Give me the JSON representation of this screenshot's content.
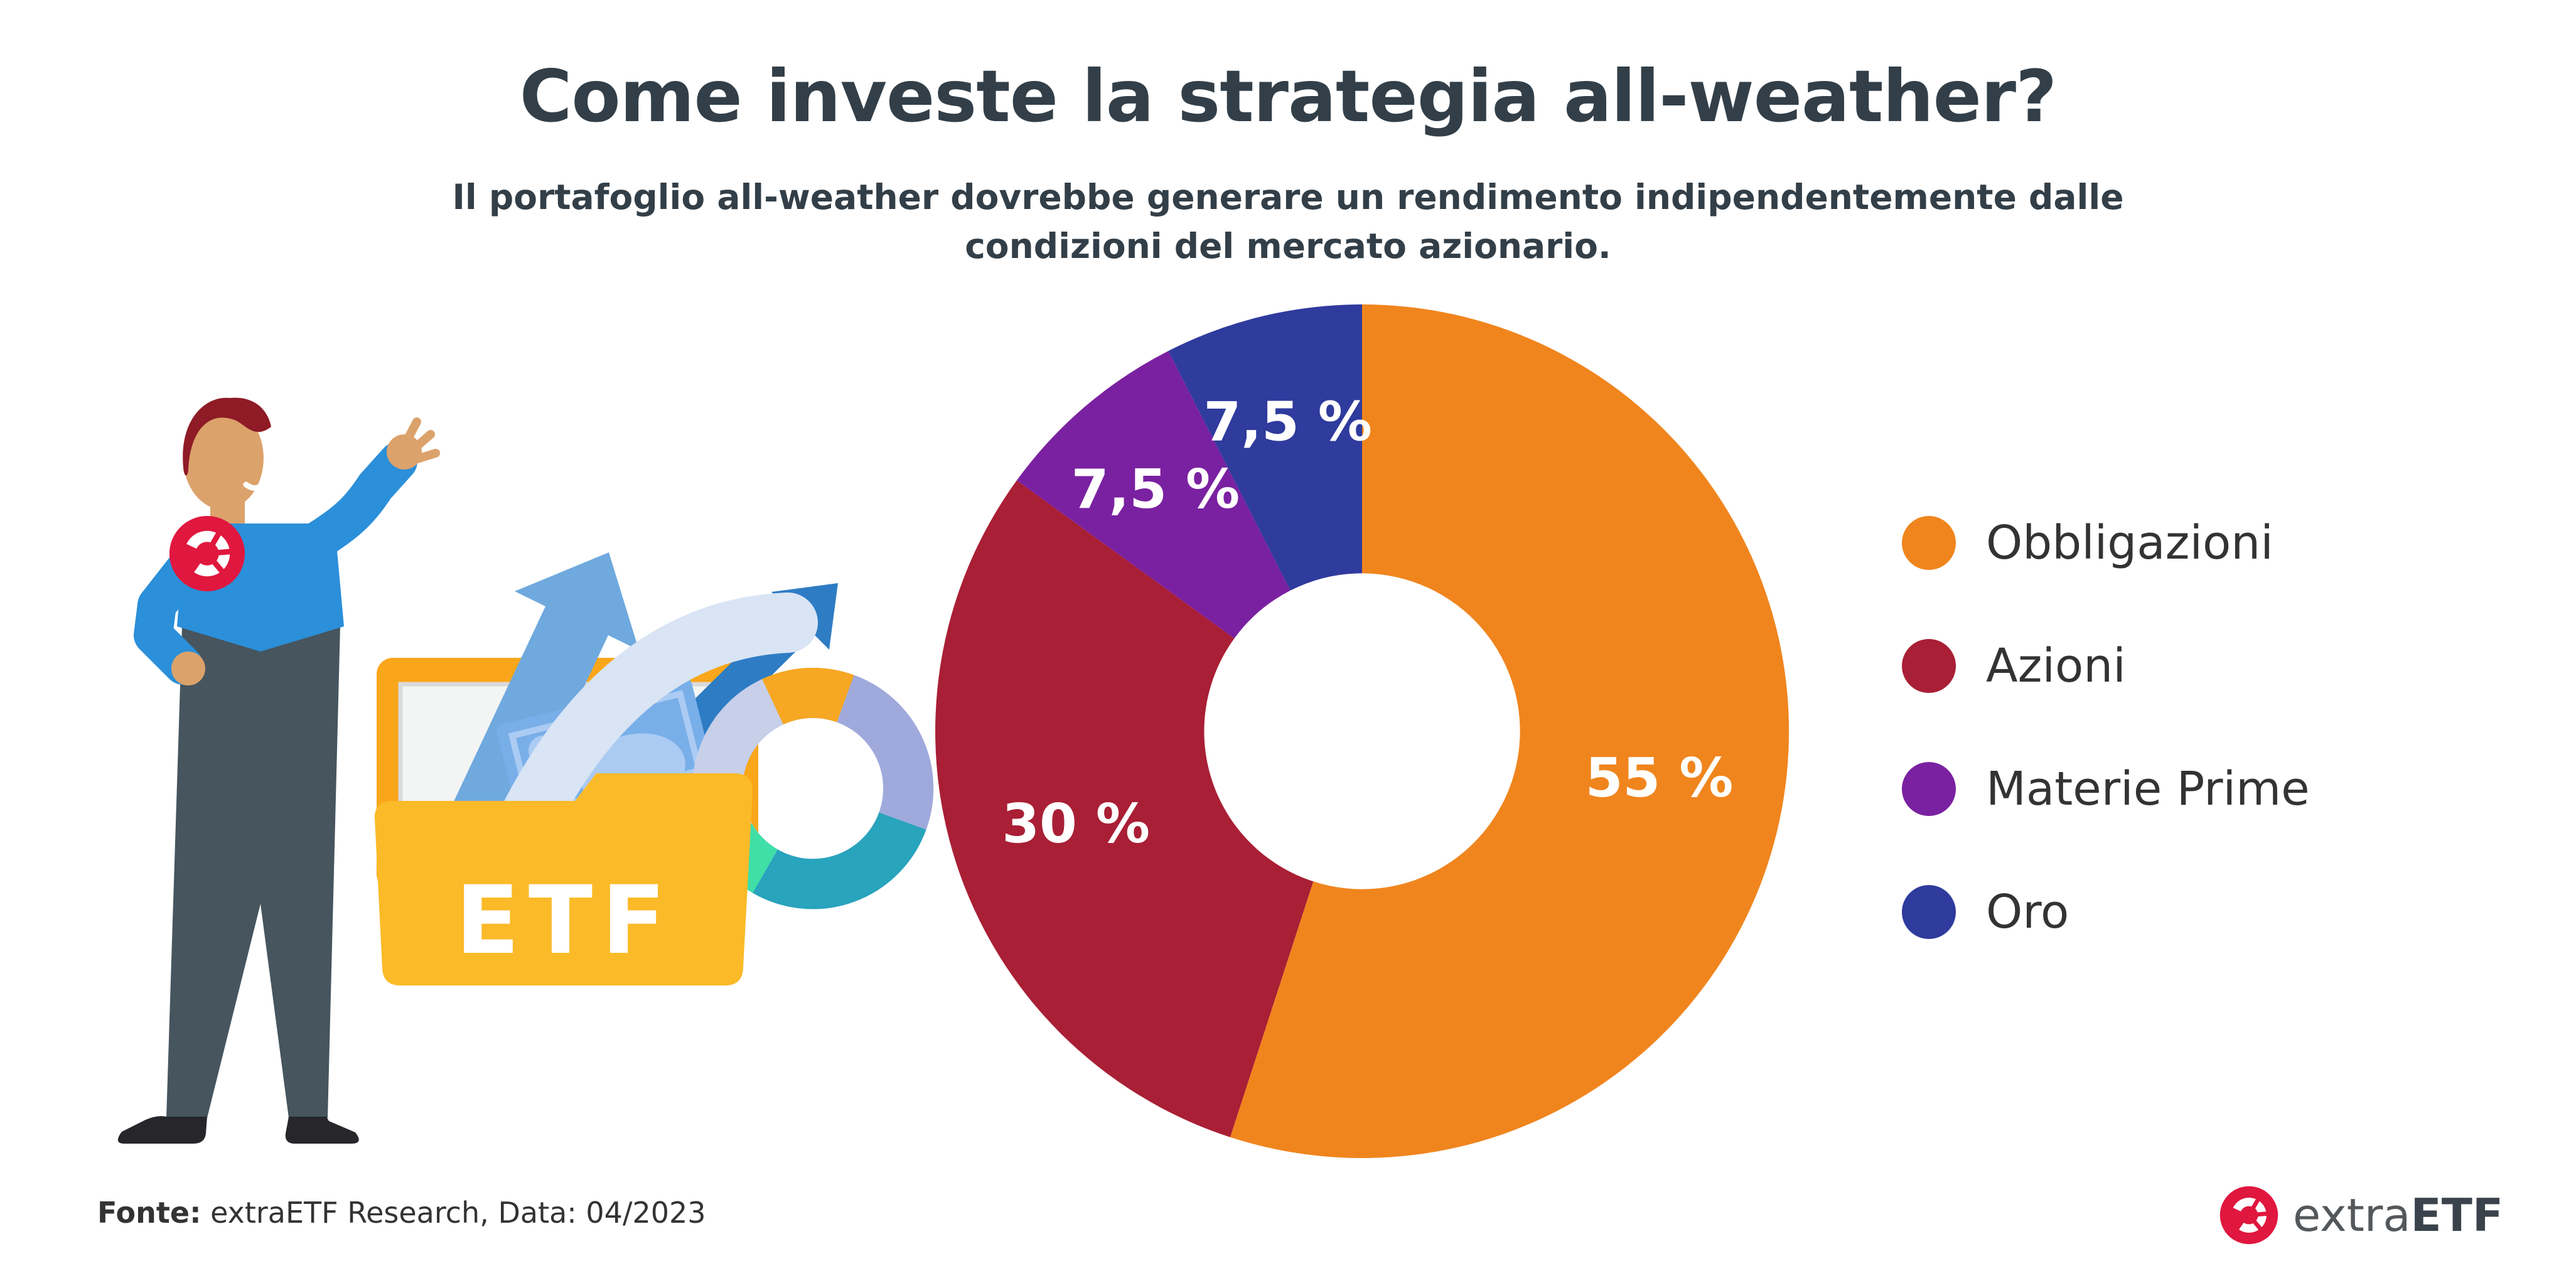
{
  "header": {
    "title": "Come investe la strategia all-weather?",
    "subtitle": "Il portafoglio all-weather dovrebbe generare un rendimento indipendentemente dalle condizioni del mercato azionario."
  },
  "chart_data": {
    "type": "pie",
    "style": "donut",
    "title": "Come investe la strategia all-weather?",
    "start_angle_deg": 0,
    "direction": "clockwise",
    "inner_radius_ratio": 0.37,
    "legend_position": "right",
    "value_label_color": "#ffffff",
    "slices": [
      {
        "label": "Obbligazioni",
        "value": 55,
        "display": "55 %",
        "color": "#F0851E"
      },
      {
        "label": "Azioni",
        "value": 30,
        "display": "30 %",
        "color": "#A91F35"
      },
      {
        "label": "Materie Prime",
        "value": 7.5,
        "display": "7,5 %",
        "color": "#7A21A1"
      },
      {
        "label": "Oro",
        "value": 7.5,
        "display": "7,5 %",
        "color": "#2F3B9D"
      }
    ]
  },
  "illustration": {
    "folder_label": "ETF"
  },
  "footer": {
    "source_label": "Fonte:",
    "source_rest": " extraETF Research, Data: 04/2023",
    "logo_extra": "extra",
    "logo_etf": "ETF"
  },
  "colors": {
    "title_text": "#333F48",
    "legend_text": "#333333",
    "brand_red": "#E0173E"
  }
}
